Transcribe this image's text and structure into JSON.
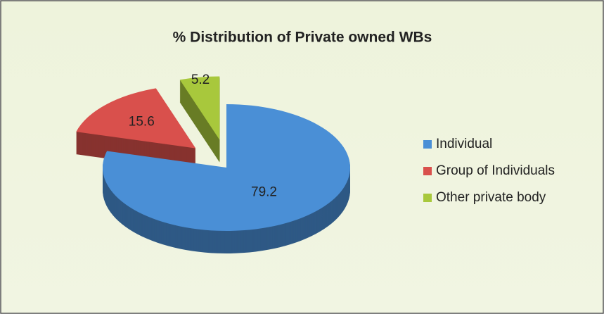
{
  "chart_data": {
    "type": "pie",
    "title": "% Distribution of Private owned WBs",
    "categories": [
      "Individual",
      "Group of Individuals",
      "Other private body"
    ],
    "values": [
      79.2,
      15.6,
      5.2
    ],
    "colors": [
      "#4a8fd6",
      "#d9504c",
      "#a8c83c"
    ],
    "legend": "right"
  }
}
